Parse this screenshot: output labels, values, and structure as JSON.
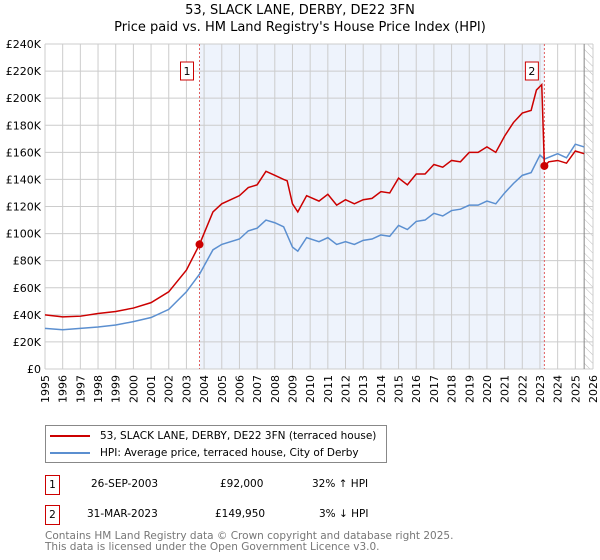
{
  "chart_data": {
    "type": "line",
    "title": "53, SLACK LANE, DERBY, DE22 3FN",
    "subtitle": "Price paid vs. HM Land Registry's House Price Index (HPI)",
    "xlim": [
      1995,
      2026
    ],
    "ylim": [
      0,
      240000
    ],
    "x_ticks": [
      "1995",
      "1996",
      "1997",
      "1998",
      "1999",
      "2000",
      "2001",
      "2002",
      "2003",
      "2004",
      "2005",
      "2006",
      "2007",
      "2008",
      "2009",
      "2010",
      "2011",
      "2012",
      "2013",
      "2014",
      "2015",
      "2016",
      "2017",
      "2018",
      "2019",
      "2020",
      "2021",
      "2022",
      "2023",
      "2024",
      "2025",
      "2026"
    ],
    "y_ticks": [
      "£0",
      "£20K",
      "£40K",
      "£60K",
      "£80K",
      "£100K",
      "£120K",
      "£140K",
      "£160K",
      "£180K",
      "£200K",
      "£220K",
      "£240K"
    ],
    "grid": true,
    "series": [
      {
        "name": "53, SLACK LANE, DERBY, DE22 3FN (terraced house)",
        "color": "#cc0000",
        "x": [
          1995,
          1996,
          1997,
          1998,
          1999,
          2000,
          2001,
          2002,
          2003,
          2003.74,
          2004.5,
          2005,
          2006,
          2006.5,
          2007,
          2007.5,
          2008,
          2008.5,
          2008.7,
          2009,
          2009.3,
          2009.8,
          2010.5,
          2011,
          2011.5,
          2012,
          2012.5,
          2013,
          2013.5,
          2014,
          2014.5,
          2015,
          2015.5,
          2016,
          2016.5,
          2017,
          2017.5,
          2018,
          2018.5,
          2019,
          2019.5,
          2020,
          2020.5,
          2021,
          2021.5,
          2022,
          2022.5,
          2022.8,
          2023.1,
          2023.25,
          2023.5,
          2024,
          2024.5,
          2025,
          2025.5
        ],
        "y": [
          40000,
          38500,
          39000,
          41000,
          42500,
          45000,
          49000,
          57000,
          73000,
          92000,
          116000,
          122000,
          128000,
          134000,
          136000,
          146000,
          143000,
          140000,
          139000,
          122000,
          116000,
          128000,
          124000,
          129000,
          121000,
          125000,
          122000,
          125000,
          126000,
          131000,
          130000,
          141000,
          136000,
          144000,
          144000,
          151000,
          149000,
          154000,
          153000,
          160000,
          160000,
          164000,
          160000,
          172000,
          182000,
          189000,
          191000,
          206000,
          210000,
          149950,
          153000,
          154000,
          152000,
          161000,
          159000
        ]
      },
      {
        "name": "HPI: Average price, terraced house, City of Derby",
        "color": "#5b8fd0",
        "x": [
          1995,
          1996,
          1997,
          1998,
          1999,
          2000,
          2001,
          2002,
          2003,
          2003.74,
          2004.5,
          2005,
          2006,
          2006.5,
          2007,
          2007.5,
          2008,
          2008.5,
          2009,
          2009.3,
          2009.8,
          2010.5,
          2011,
          2011.5,
          2012,
          2012.5,
          2013,
          2013.5,
          2014,
          2014.5,
          2015,
          2015.5,
          2016,
          2016.5,
          2017,
          2017.5,
          2018,
          2018.5,
          2019,
          2019.5,
          2020,
          2020.5,
          2021,
          2021.5,
          2022,
          2022.5,
          2023,
          2023.25,
          2024,
          2024.5,
          2025,
          2025.5
        ],
        "y": [
          30000,
          29000,
          30000,
          31000,
          32500,
          35000,
          38000,
          44000,
          57000,
          70000,
          88000,
          92000,
          96000,
          102000,
          104000,
          110000,
          108000,
          105000,
          90000,
          87000,
          97000,
          94000,
          97000,
          92000,
          94000,
          92000,
          95000,
          96000,
          99000,
          98000,
          106000,
          103000,
          109000,
          110000,
          115000,
          113000,
          117000,
          118000,
          121000,
          121000,
          124000,
          122000,
          130000,
          137000,
          143000,
          145000,
          158000,
          155000,
          159000,
          156000,
          166000,
          164000
        ]
      }
    ],
    "annotations": [
      {
        "label": "1",
        "x": 2003.74,
        "y": 92000
      },
      {
        "label": "2",
        "x": 2023.25,
        "y": 149950
      }
    ],
    "shaded_range": [
      2003.74,
      2023.25
    ],
    "hatched_from": 2025.5,
    "legend": "below"
  },
  "transactions": [
    {
      "n": "1",
      "date": "26-SEP-2003",
      "price": "£92,000",
      "hpi": "32% ↑ HPI"
    },
    {
      "n": "2",
      "date": "31-MAR-2023",
      "price": "£149,950",
      "hpi": "3% ↓ HPI"
    }
  ],
  "footer": [
    "Contains HM Land Registry data © Crown copyright and database right 2025.",
    "This data is licensed under the Open Government Licence v3.0."
  ]
}
